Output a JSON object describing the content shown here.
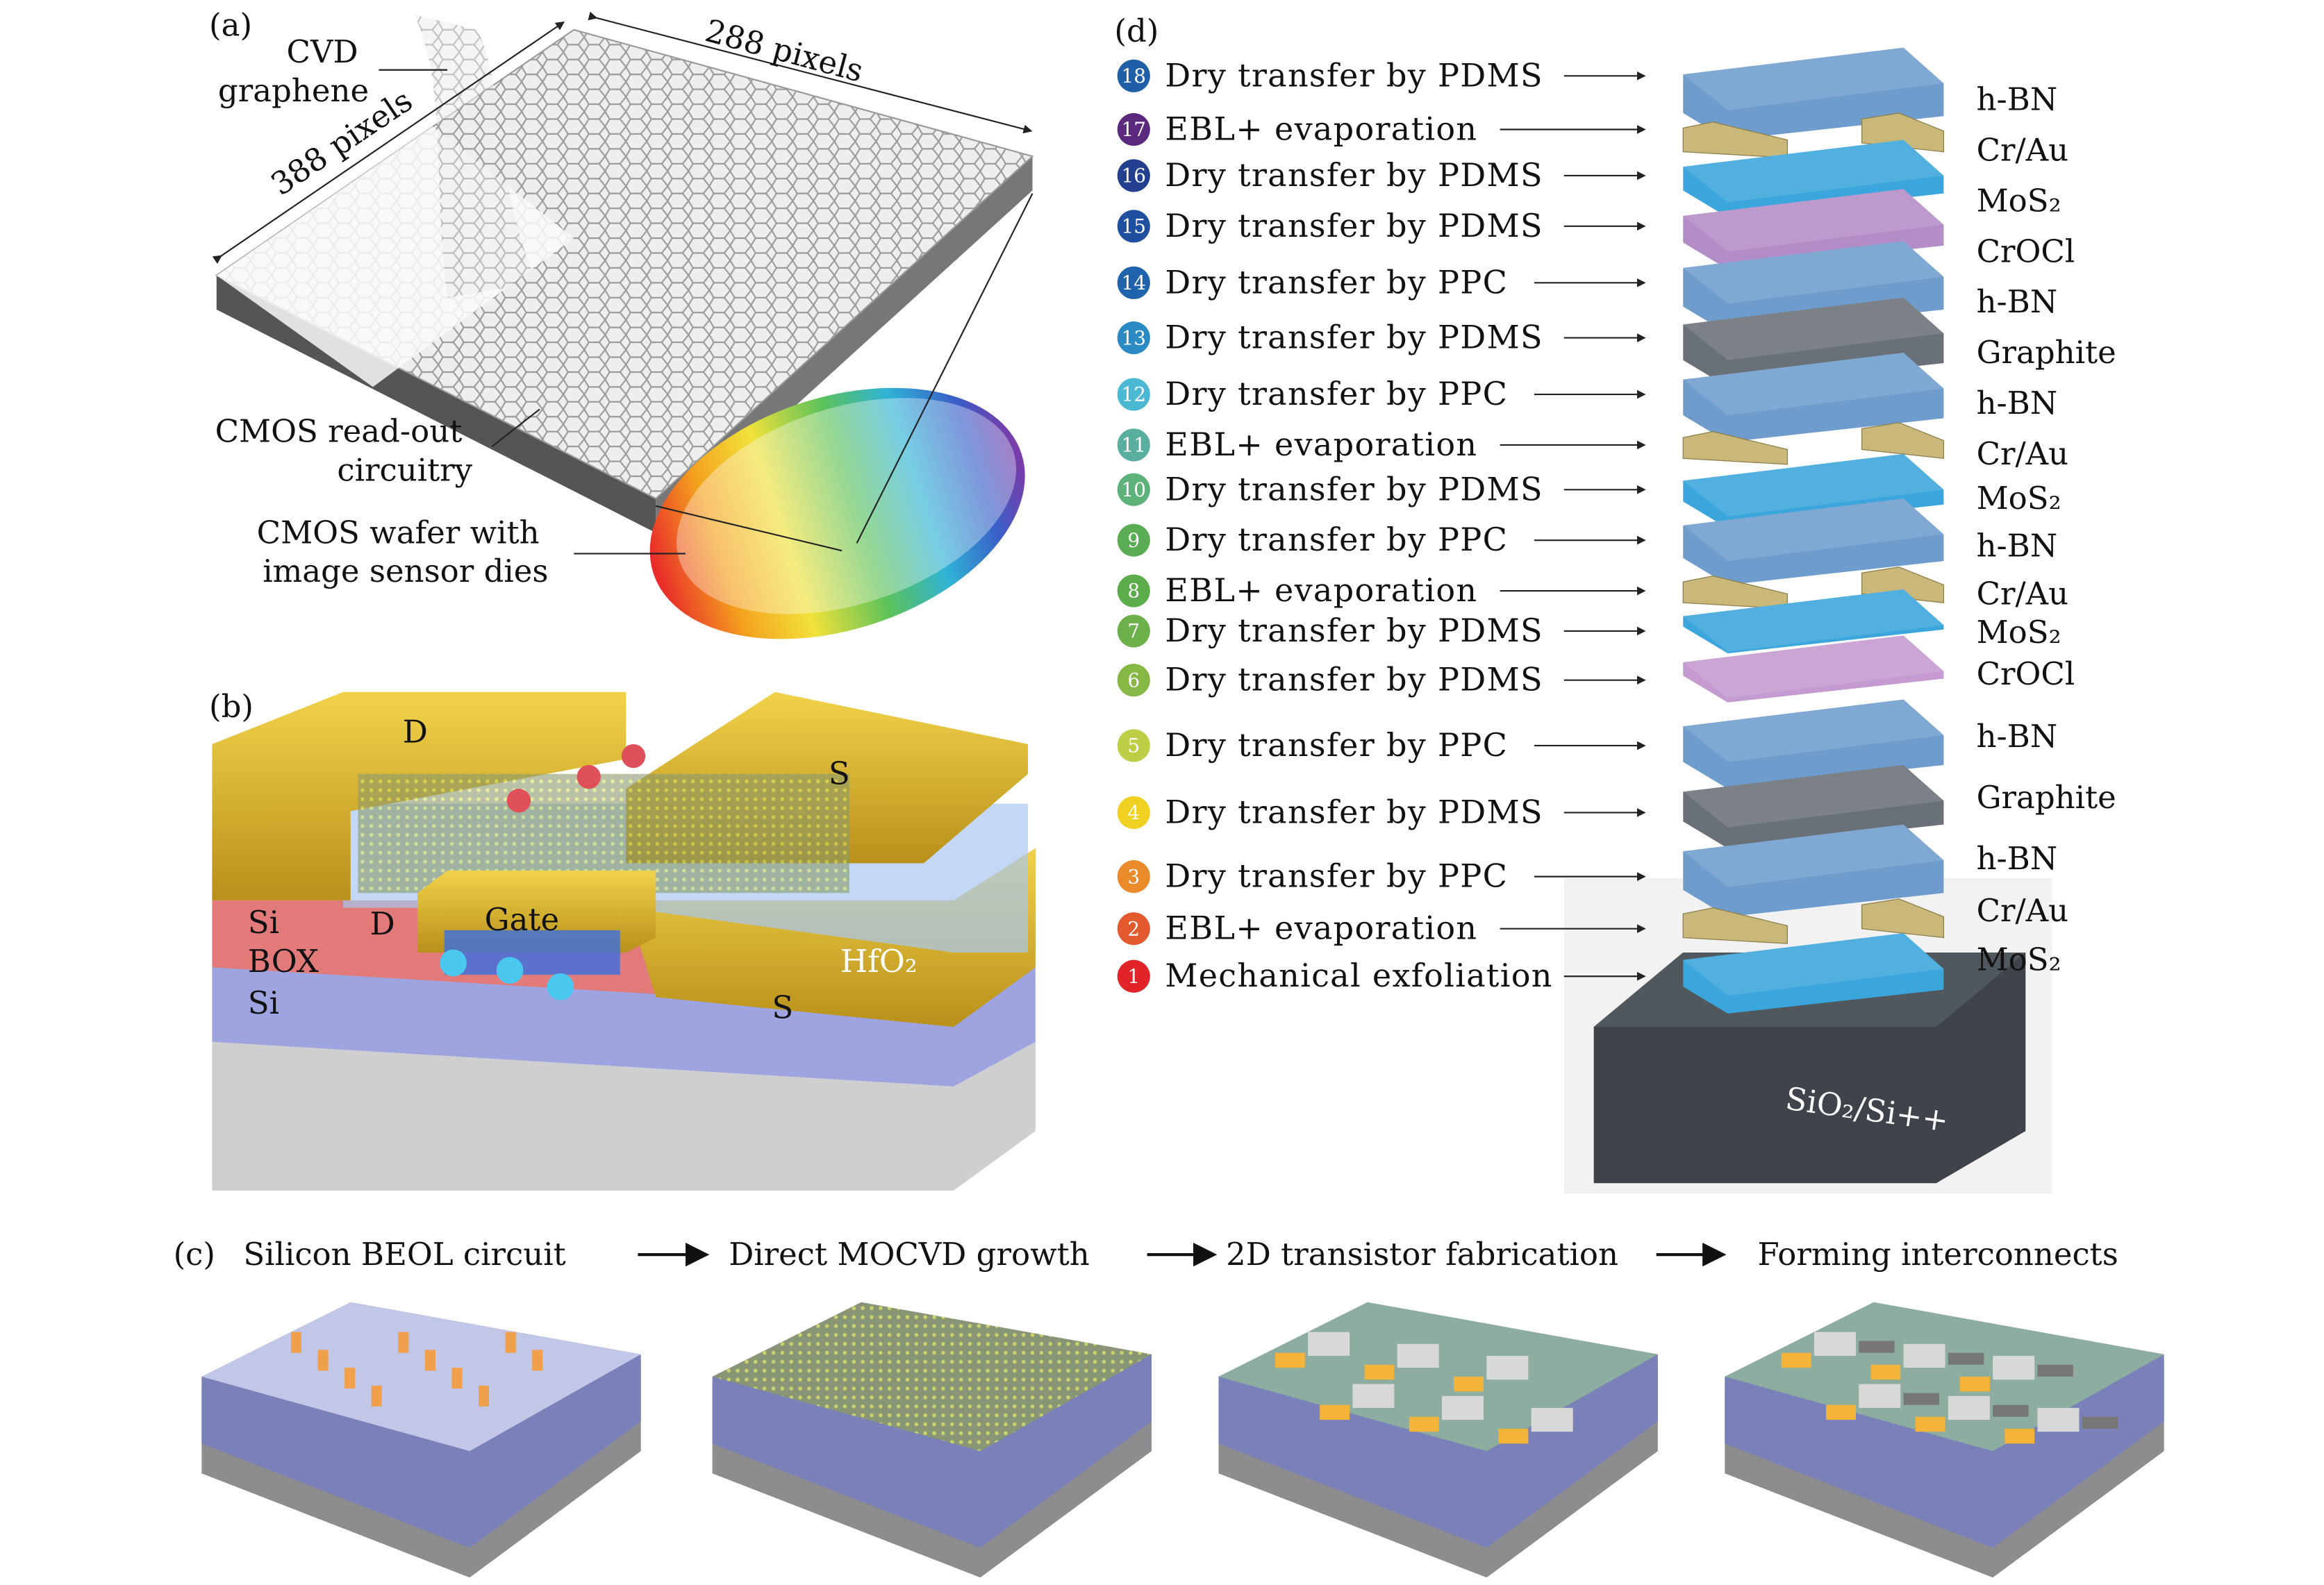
{
  "panel_a": {
    "tag": "(a)",
    "cvd": "CVD",
    "graphene": "graphene",
    "dim_388": "388 pixels",
    "dim_288": "288 pixels",
    "cmos1": "CMOS read-out",
    "cmos2": "circuitry",
    "wafer1": "CMOS wafer with",
    "wafer2": "image sensor dies"
  },
  "panel_b": {
    "tag": "(b)",
    "d_top": "D",
    "s_top": "S",
    "si_top": "Si",
    "d_low": "D",
    "gate": "Gate",
    "box": "BOX",
    "hfo2": "HfO₂",
    "si_bottom": "Si",
    "s_low": "S"
  },
  "panel_c": {
    "tag": "(c)",
    "steps": [
      "Silicon BEOL circuit",
      "Direct MOCVD growth",
      "2D transistor fabrication",
      "Forming interconnects"
    ]
  },
  "panel_d": {
    "tag": "(d)",
    "steps": [
      {
        "num": "18",
        "label": "Dry transfer by PDMS",
        "color": "#1f5fa8"
      },
      {
        "num": "17",
        "label": "EBL+ evaporation",
        "color": "#5b2a7e"
      },
      {
        "num": "16",
        "label": "Dry transfer by PDMS",
        "color": "#233f8f"
      },
      {
        "num": "15",
        "label": "Dry transfer by PDMS",
        "color": "#1f4f9f"
      },
      {
        "num": "14",
        "label": "Dry transfer by PPC",
        "color": "#1f63ad"
      },
      {
        "num": "13",
        "label": "Dry transfer by PDMS",
        "color": "#2a8ac4"
      },
      {
        "num": "12",
        "label": "Dry transfer by PPC",
        "color": "#4bb8d4"
      },
      {
        "num": "11",
        "label": "EBL+ evaporation",
        "color": "#5aaea0"
      },
      {
        "num": "10",
        "label": "Dry transfer by PDMS",
        "color": "#5db27a"
      },
      {
        "num": "9",
        "label": "Dry transfer by PPC",
        "color": "#5aad55"
      },
      {
        "num": "8",
        "label": "EBL+ evaporation",
        "color": "#5aad4a"
      },
      {
        "num": "7",
        "label": "Dry transfer by PDMS",
        "color": "#6bb04a"
      },
      {
        "num": "6",
        "label": "Dry transfer by PDMS",
        "color": "#86b846"
      },
      {
        "num": "5",
        "label": "Dry transfer by PPC",
        "color": "#bccf45"
      },
      {
        "num": "4",
        "label": "Dry transfer by PDMS",
        "color": "#f0d020"
      },
      {
        "num": "3",
        "label": "Dry transfer by PPC",
        "color": "#ea8a2a"
      },
      {
        "num": "2",
        "label": "EBL+ evaporation",
        "color": "#e35a2f"
      },
      {
        "num": "1",
        "label": "Mechanical exfoliation",
        "color": "#e0242a"
      }
    ],
    "layers": [
      {
        "label": "h-BN",
        "color": "#6e9ccc"
      },
      {
        "label": "Cr/Au",
        "color": "#c9b87a"
      },
      {
        "label": "MoS₂",
        "color": "#3aa6dc"
      },
      {
        "label": "CrOCl",
        "color": "#b48cc8"
      },
      {
        "label": "h-BN",
        "color": "#6e9ccc"
      },
      {
        "label": "Graphite",
        "color": "#6a7078"
      },
      {
        "label": "h-BN",
        "color": "#6e9ccc"
      },
      {
        "label": "Cr/Au",
        "color": "#c9b87a"
      },
      {
        "label": "MoS₂",
        "color": "#3aa6dc"
      },
      {
        "label": "h-BN",
        "color": "#6e9ccc"
      },
      {
        "label": "Cr/Au",
        "color": "#c9b87a"
      },
      {
        "label": "MoS₂",
        "color": "#3aa6dc"
      },
      {
        "label": "CrOCl",
        "color": "#c49ad0"
      },
      {
        "label": "h-BN",
        "color": "#6e9ccc"
      },
      {
        "label": "Graphite",
        "color": "#6a7078"
      },
      {
        "label": "h-BN",
        "color": "#6e9ccc"
      },
      {
        "label": "Cr/Au",
        "color": "#c9b87a"
      },
      {
        "label": "MoS₂",
        "color": "#3aa6dc"
      }
    ],
    "substrate": "SiO₂/Si++"
  }
}
